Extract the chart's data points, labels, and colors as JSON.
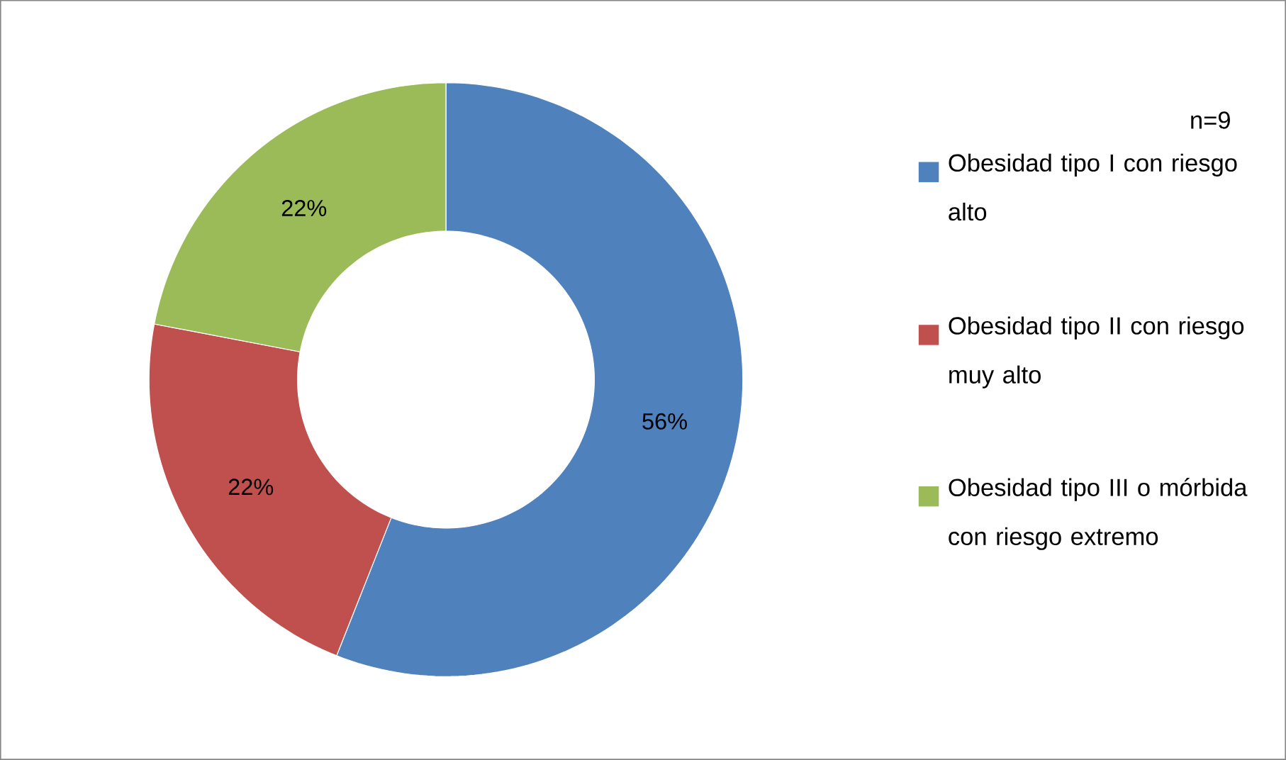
{
  "chart_data": {
    "type": "donut",
    "legend_title": "n=9",
    "legend": "right",
    "categories": [
      "Obesidad tipo I con riesgo alto",
      "Obesidad tipo II con riesgo muy alto",
      "Obesidad tipo III o mórbida con riesgo extremo"
    ],
    "values": [
      56,
      22,
      22
    ],
    "value_labels": [
      "56%",
      "22%",
      "22%"
    ],
    "colors": [
      "#4f81bd",
      "#c0504d",
      "#9bbb59"
    ]
  }
}
